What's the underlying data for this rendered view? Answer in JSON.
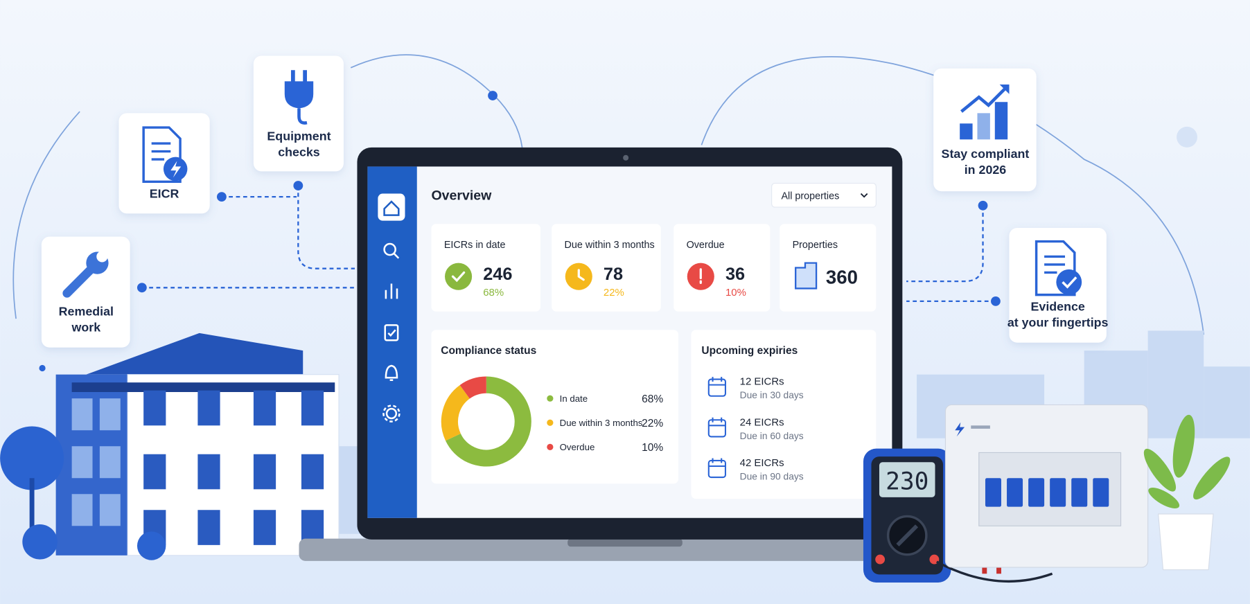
{
  "features": [
    {
      "lines": [
        "EICR"
      ]
    },
    {
      "lines": [
        "Equipment",
        "checks"
      ]
    },
    {
      "lines": [
        "Remedial",
        "work"
      ]
    },
    {
      "lines": [
        "Stay compliant",
        "in 2026"
      ]
    },
    {
      "lines": [
        "Evidence",
        "at your fingertips"
      ]
    }
  ],
  "dashboard": {
    "title": "Overview",
    "filter": "All properties",
    "stats": [
      {
        "label": "EICRs in date",
        "value": 246,
        "percent": "68%",
        "color": "#8ab83e"
      },
      {
        "label": "Due within 3 months",
        "value": 78,
        "percent": "22%",
        "color": "#f5b81c"
      },
      {
        "label": "Overdue",
        "value": 36,
        "percent": "10%",
        "color": "#e84a45"
      },
      {
        "label": "Properties",
        "value": 360
      }
    ],
    "compliance": {
      "title": "Compliance status",
      "items": [
        {
          "label": "In date",
          "value": 68,
          "value_label": "68%",
          "color": "#8cbb3f"
        },
        {
          "label": "Due within 3 months",
          "value": 22,
          "value_label": "22%",
          "color": "#f5b81c"
        },
        {
          "label": "Overdue",
          "value": 10,
          "value_label": "10%",
          "color": "#e84a45"
        }
      ]
    },
    "expiries": {
      "title": "Upcoming expiries",
      "items": [
        {
          "title": "12 EICRs",
          "subtitle": "Due in 30 days"
        },
        {
          "title": "24 EICRs",
          "subtitle": "Due in 60 days"
        },
        {
          "title": "42 EICRs",
          "subtitle": "Due in 90 days"
        }
      ]
    }
  },
  "meter": {
    "display": "230"
  }
}
